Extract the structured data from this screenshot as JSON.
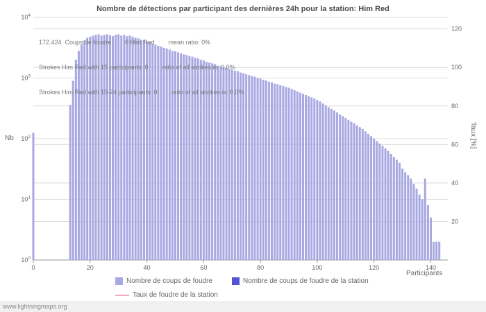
{
  "title": "Nombre de détections par participant des dernières 24h pour la station: Him Red",
  "annotation": {
    "line1": "172.424  Coups de foudre        0 Him Red        mean ratio: 0%",
    "line2": "Strokes Him Red with 15 participants: 0        ratio of all strokes is: 0,0%",
    "line3": "Strokes Him Red with 15-24 participants: 0        ratio of all strokes is: 0,0%"
  },
  "axes": {
    "left_label": "Nb",
    "right_label": "Taux [%]",
    "x_label": "Participants",
    "left_ticks": [
      "10^0",
      "10^1",
      "10^2",
      "10^3",
      "10^4"
    ],
    "right_ticks": [
      20,
      40,
      60,
      80,
      100,
      120
    ],
    "x_ticks": [
      0,
      20,
      40,
      60,
      80,
      100,
      120,
      140
    ]
  },
  "legend": [
    {
      "label": "Nombre de coups de foudre"
    },
    {
      "label": "Nombre de coups de foudre de la station"
    },
    {
      "label": "Taux de foudre de la station"
    }
  ],
  "watermark": "www.lightningmaps.org",
  "chart_data": {
    "type": "bar",
    "title": "Nombre de détections par participant des dernières 24h pour la station: Him Red",
    "xlabel": "Participants",
    "ylabel_left": "Nb",
    "ylabel_right": "Taux [%]",
    "x_range": [
      0,
      146
    ],
    "y_left_range": [
      1,
      10000
    ],
    "y_left_scale": "log",
    "y_right_range": [
      0,
      126
    ],
    "grid": true,
    "legend_position": "bottom",
    "series": [
      {
        "name": "Nombre de coups de foudre",
        "color": "#a8a8e2",
        "kind": "bar",
        "points": [
          [
            0,
            125
          ],
          [
            13,
            360
          ],
          [
            14,
            900
          ],
          [
            15,
            2000
          ],
          [
            16,
            2800
          ],
          [
            17,
            3550
          ],
          [
            18,
            4200
          ],
          [
            19,
            4600
          ],
          [
            20,
            4800
          ],
          [
            21,
            5000
          ],
          [
            22,
            5150
          ],
          [
            23,
            5250
          ],
          [
            24,
            5000
          ],
          [
            25,
            5150
          ],
          [
            26,
            5250
          ],
          [
            27,
            5050
          ],
          [
            28,
            4900
          ],
          [
            29,
            5150
          ],
          [
            30,
            5250
          ],
          [
            31,
            5000
          ],
          [
            32,
            5150
          ],
          [
            33,
            4900
          ],
          [
            34,
            5000
          ],
          [
            35,
            4800
          ],
          [
            36,
            4600
          ],
          [
            37,
            4500
          ],
          [
            38,
            4300
          ],
          [
            39,
            4200
          ],
          [
            40,
            4000
          ],
          [
            41,
            3850
          ],
          [
            42,
            3700
          ],
          [
            43,
            3550
          ],
          [
            44,
            3400
          ],
          [
            45,
            3300
          ],
          [
            46,
            3150
          ],
          [
            47,
            3050
          ],
          [
            48,
            2950
          ],
          [
            49,
            2800
          ],
          [
            50,
            2750
          ],
          [
            51,
            2650
          ],
          [
            52,
            2550
          ],
          [
            53,
            2450
          ],
          [
            54,
            2400
          ],
          [
            55,
            2300
          ],
          [
            56,
            2250
          ],
          [
            57,
            2150
          ],
          [
            58,
            2100
          ],
          [
            59,
            2000
          ],
          [
            60,
            1950
          ],
          [
            61,
            1850
          ],
          [
            62,
            1800
          ],
          [
            63,
            1750
          ],
          [
            64,
            1700
          ],
          [
            65,
            1600
          ],
          [
            66,
            1580
          ],
          [
            67,
            1500
          ],
          [
            68,
            1480
          ],
          [
            69,
            1400
          ],
          [
            70,
            1380
          ],
          [
            71,
            1320
          ],
          [
            72,
            1290
          ],
          [
            73,
            1230
          ],
          [
            74,
            1200
          ],
          [
            75,
            1150
          ],
          [
            76,
            1120
          ],
          [
            77,
            1070
          ],
          [
            78,
            1050
          ],
          [
            79,
            1000
          ],
          [
            80,
            980
          ],
          [
            81,
            930
          ],
          [
            82,
            910
          ],
          [
            83,
            870
          ],
          [
            84,
            850
          ],
          [
            85,
            810
          ],
          [
            86,
            790
          ],
          [
            87,
            760
          ],
          [
            88,
            740
          ],
          [
            89,
            710
          ],
          [
            90,
            690
          ],
          [
            91,
            660
          ],
          [
            92,
            630
          ],
          [
            93,
            600
          ],
          [
            94,
            575
          ],
          [
            95,
            550
          ],
          [
            96,
            525
          ],
          [
            97,
            500
          ],
          [
            98,
            480
          ],
          [
            99,
            460
          ],
          [
            100,
            435
          ],
          [
            101,
            410
          ],
          [
            102,
            380
          ],
          [
            103,
            355
          ],
          [
            104,
            330
          ],
          [
            105,
            310
          ],
          [
            106,
            290
          ],
          [
            107,
            270
          ],
          [
            108,
            250
          ],
          [
            109,
            235
          ],
          [
            110,
            220
          ],
          [
            111,
            205
          ],
          [
            112,
            190
          ],
          [
            113,
            180
          ],
          [
            114,
            165
          ],
          [
            115,
            155
          ],
          [
            116,
            145
          ],
          [
            117,
            132
          ],
          [
            118,
            120
          ],
          [
            119,
            110
          ],
          [
            120,
            100
          ],
          [
            121,
            91
          ],
          [
            122,
            83
          ],
          [
            123,
            76
          ],
          [
            124,
            69
          ],
          [
            125,
            63
          ],
          [
            126,
            56
          ],
          [
            127,
            50
          ],
          [
            128,
            45
          ],
          [
            129,
            40
          ],
          [
            130,
            32
          ],
          [
            131,
            28
          ],
          [
            132,
            25
          ],
          [
            133,
            22
          ],
          [
            134,
            18
          ],
          [
            135,
            15
          ],
          [
            136,
            12
          ],
          [
            137,
            10
          ],
          [
            138,
            22
          ],
          [
            139,
            8
          ],
          [
            140,
            5
          ],
          [
            141,
            2
          ],
          [
            142,
            2
          ],
          [
            143,
            2
          ]
        ]
      },
      {
        "name": "Nombre de coups de foudre de la station",
        "color": "#5252d4",
        "kind": "bar",
        "points": []
      },
      {
        "name": "Taux de foudre de la station",
        "color": "#f4a7c3",
        "kind": "line",
        "points": []
      }
    ]
  }
}
